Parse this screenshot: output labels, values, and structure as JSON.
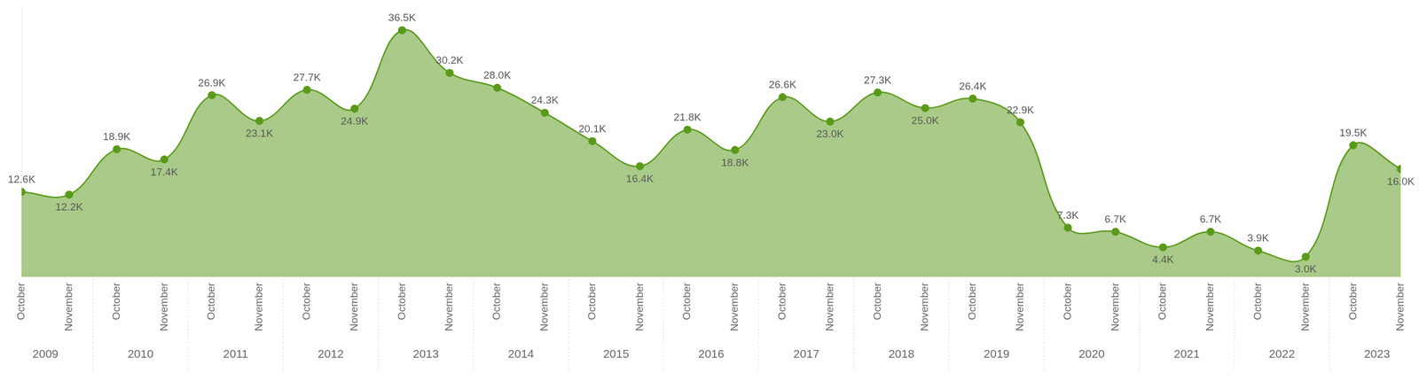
{
  "chart_data": {
    "type": "area",
    "categories": [
      "October",
      "November",
      "October",
      "November",
      "October",
      "November",
      "October",
      "November",
      "October",
      "November",
      "October",
      "November",
      "October",
      "November",
      "October",
      "November",
      "October",
      "November",
      "October",
      "November",
      "October",
      "November",
      "October",
      "November",
      "October",
      "November",
      "October",
      "November",
      "October",
      "November"
    ],
    "category_groups": [
      "2009",
      "2010",
      "2011",
      "2012",
      "2013",
      "2014",
      "2015",
      "2016",
      "2017",
      "2018",
      "2019",
      "2020",
      "2021",
      "2022",
      "2023"
    ],
    "values": [
      12600,
      12200,
      18900,
      17400,
      26900,
      23100,
      27700,
      24900,
      36500,
      30200,
      28000,
      24300,
      20100,
      16400,
      21800,
      18800,
      26600,
      23000,
      27300,
      25000,
      26400,
      22900,
      7300,
      6700,
      4400,
      6700,
      3900,
      3000,
      19500,
      16000
    ],
    "value_labels": [
      "12.6K",
      "12.2K",
      "18.9K",
      "17.4K",
      "26.9K",
      "23.1K",
      "27.7K",
      "24.9K",
      "36.5K",
      "30.2K",
      "28.0K",
      "24.3K",
      "20.1K",
      "16.4K",
      "21.8K",
      "18.8K",
      "26.6K",
      "23.0K",
      "27.3K",
      "25.0K",
      "26.4K",
      "22.9K",
      "7.3K",
      "6.7K",
      "4.4K",
      "6.7K",
      "3.9K",
      "3.0K",
      "19.5K",
      "16.0K"
    ],
    "color": "#5a9a1a",
    "ylim": [
      0,
      40000
    ],
    "grid": false,
    "data_labels": true,
    "tick_labels": "x"
  }
}
